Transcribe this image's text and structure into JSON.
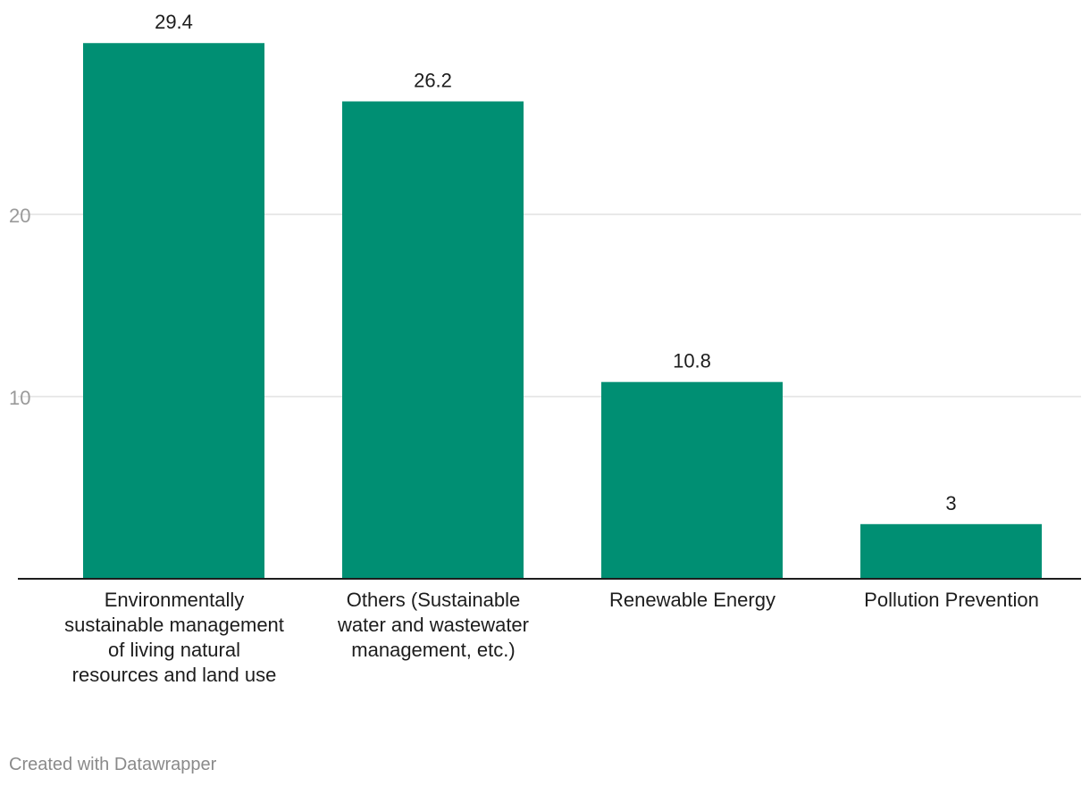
{
  "chart_data": {
    "type": "bar",
    "categories": [
      "Environmentally sustainable management of living natural resources and land use",
      "Others (Sustainable water and wastewater management, etc.)",
      "Renewable Energy",
      "Pollution Prevention"
    ],
    "values": [
      29.4,
      26.2,
      10.8,
      3
    ],
    "value_labels": [
      "29.4",
      "26.2",
      "10.8",
      "3"
    ],
    "yticks": [
      10,
      20
    ],
    "ylim": [
      0,
      29.4
    ],
    "grid": true,
    "bar_color": "#008f73",
    "title": "",
    "xlabel": "",
    "ylabel": ""
  },
  "footer": "Created with Datawrapper"
}
